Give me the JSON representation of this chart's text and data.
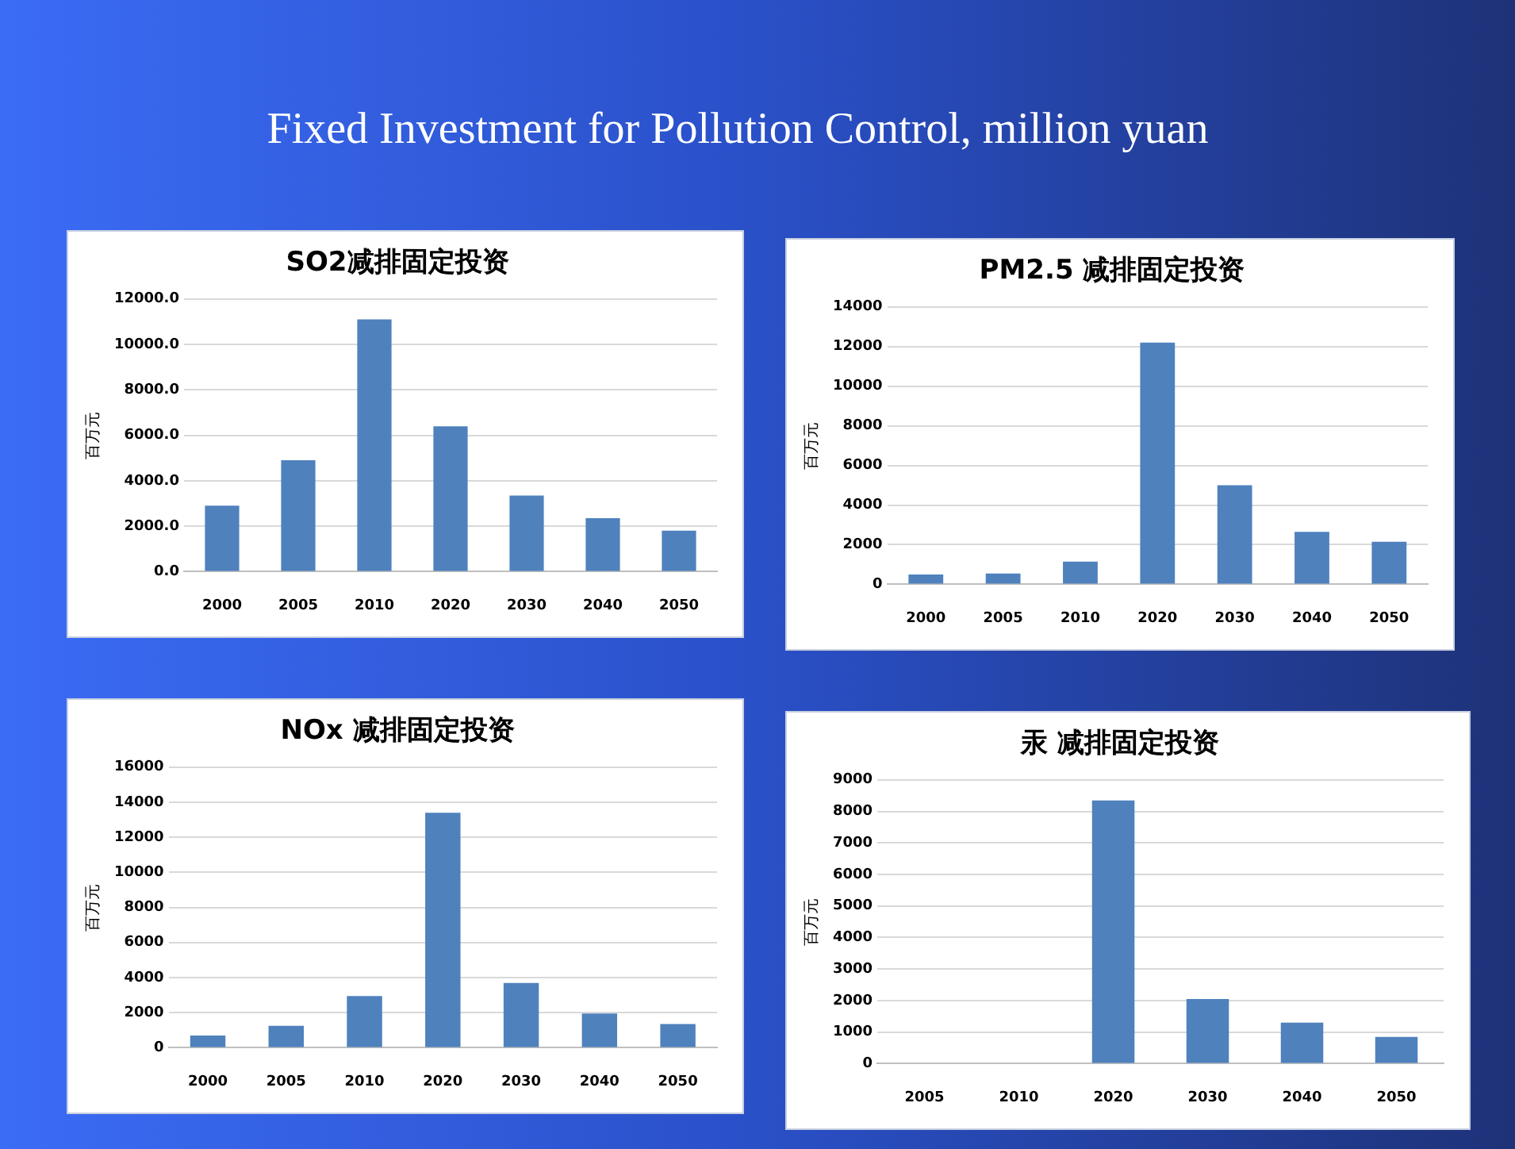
{
  "chart_data": [
    {
      "type": "other",
      "title": "Fixed Investment for Pollution Control, million yuan"
    },
    {
      "type": "bar",
      "title": "SO2减排固定投资",
      "ylabel": "百万元",
      "categories": [
        "2000",
        "2005",
        "2010",
        "2020",
        "2030",
        "2040",
        "2050"
      ],
      "values": [
        2900,
        4900,
        11100,
        6400,
        3350,
        2350,
        1800
      ],
      "color": "#4f81bd",
      "ylim": [
        0,
        12000
      ],
      "yticks": [
        {
          "value": 0,
          "label": "0.0"
        },
        {
          "value": 2000,
          "label": "2000.0"
        },
        {
          "value": 4000,
          "label": "4000.0"
        },
        {
          "value": 6000,
          "label": "6000.0"
        },
        {
          "value": 8000,
          "label": "8000.0"
        },
        {
          "value": 10000,
          "label": "10000.0"
        },
        {
          "value": 12000,
          "label": "12000.0"
        }
      ],
      "grid": "y",
      "legend": false
    },
    {
      "type": "bar",
      "title": "PM2.5 减排固定投资",
      "ylabel": "百万元",
      "categories": [
        "2000",
        "2005",
        "2010",
        "2020",
        "2030",
        "2040",
        "2050"
      ],
      "values": [
        500,
        550,
        1150,
        12200,
        5000,
        2650,
        2150
      ],
      "color": "#4f81bd",
      "ylim": [
        0,
        14000
      ],
      "yticks": [
        0,
        2000,
        4000,
        6000,
        8000,
        10000,
        12000,
        14000
      ],
      "grid": "y",
      "legend": false
    },
    {
      "type": "bar",
      "title": "NOx 减排固定投资",
      "ylabel": "百万元",
      "categories": [
        "2000",
        "2005",
        "2010",
        "2020",
        "2030",
        "2040",
        "2050"
      ],
      "values": [
        700,
        1250,
        2950,
        13400,
        3700,
        1950,
        1350
      ],
      "color": "#4f81bd",
      "ylim": [
        0,
        16000
      ],
      "yticks": [
        0,
        2000,
        4000,
        6000,
        8000,
        10000,
        12000,
        14000,
        16000
      ],
      "grid": "y",
      "legend": false
    },
    {
      "type": "bar",
      "title": "汞 减排固定投资",
      "ylabel": "百万元",
      "categories": [
        "2005",
        "2010",
        "2020",
        "2030",
        "2040",
        "2050"
      ],
      "values": [
        null,
        null,
        8350,
        2050,
        1300,
        850
      ],
      "color": "#4f81bd",
      "ylim": [
        0,
        9000
      ],
      "yticks": [
        0,
        1000,
        2000,
        3000,
        4000,
        5000,
        6000,
        7000,
        8000,
        9000
      ],
      "grid": "y",
      "legend": false
    }
  ]
}
